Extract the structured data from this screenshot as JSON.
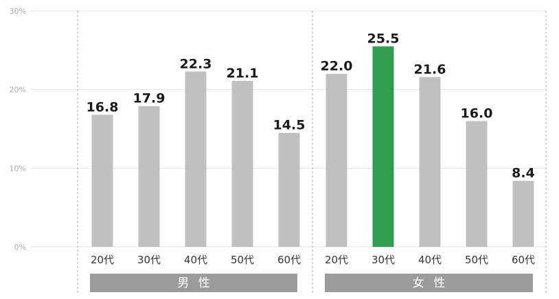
{
  "chart_data": {
    "type": "bar",
    "categories": [
      "20代",
      "30代",
      "40代",
      "50代",
      "60代",
      "20代",
      "30代",
      "40代",
      "50代",
      "60代"
    ],
    "groups": [
      {
        "label": "男 性",
        "categories": [
          "20代",
          "30代",
          "40代",
          "50代",
          "60代"
        ]
      },
      {
        "label": "女 性",
        "categories": [
          "20代",
          "30代",
          "40代",
          "50代",
          "60代"
        ]
      }
    ],
    "values": [
      16.8,
      17.9,
      22.3,
      21.1,
      14.5,
      22.0,
      25.5,
      21.6,
      16.0,
      8.4
    ],
    "value_labels": [
      "16.8",
      "17.9",
      "22.3",
      "21.1",
      "14.5",
      "22.0",
      "25.5",
      "21.6",
      "16.0",
      "8.4"
    ],
    "highlight_index": 6,
    "ylim": [
      0,
      30
    ],
    "yticks": [
      0,
      10,
      20,
      30
    ],
    "ytick_labels": [
      "0%",
      "10%",
      "20%",
      "30%"
    ],
    "grid": true,
    "title": "",
    "xlabel": "",
    "ylabel": ""
  },
  "colors": {
    "bar": "#c0c0c0",
    "highlight": "#2e9e4e",
    "group_band": "#9b9b9b",
    "grid": "#e2e2e2",
    "separator": "#aaaaaa"
  }
}
